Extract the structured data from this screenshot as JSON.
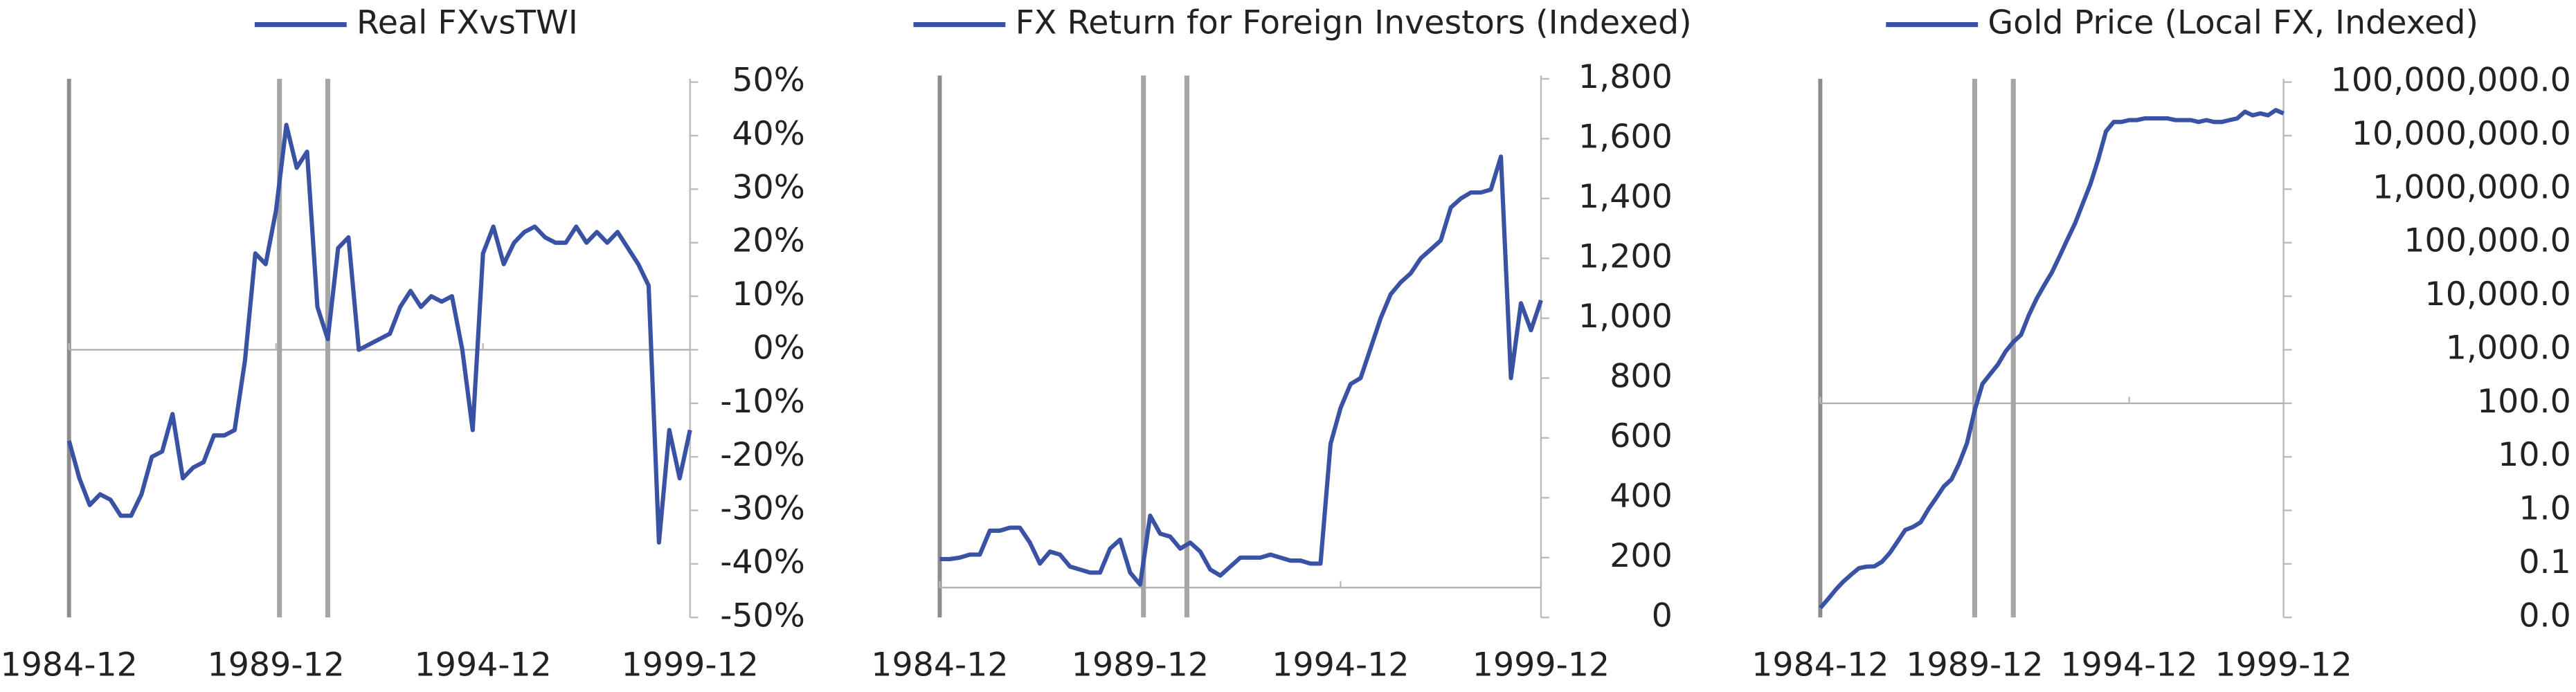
{
  "chart_data": [
    {
      "type": "line",
      "legend": "top",
      "hline": 0,
      "reference_lines": [
        "1990-01",
        "1991-03"
      ],
      "reference_color": "#a6a6a6",
      "x": [
        "1984-12",
        "1985-03",
        "1985-06",
        "1985-09",
        "1985-12",
        "1986-03",
        "1986-06",
        "1986-09",
        "1986-12",
        "1987-03",
        "1987-06",
        "1987-09",
        "1987-12",
        "1988-03",
        "1988-06",
        "1988-09",
        "1988-12",
        "1989-03",
        "1989-06",
        "1989-09",
        "1989-12",
        "1990-03",
        "1990-06",
        "1990-09",
        "1990-12",
        "1991-03",
        "1991-06",
        "1991-09",
        "1991-12",
        "1992-03",
        "1992-06",
        "1992-09",
        "1992-12",
        "1993-03",
        "1993-06",
        "1993-09",
        "1993-12",
        "1994-03",
        "1994-06",
        "1994-09",
        "1994-12",
        "1995-03",
        "1995-06",
        "1995-09",
        "1995-12",
        "1996-03",
        "1996-06",
        "1996-09",
        "1996-12",
        "1997-03",
        "1997-06",
        "1997-09",
        "1997-12",
        "1998-03",
        "1998-06",
        "1998-09",
        "1998-12",
        "1999-03",
        "1999-06",
        "1999-09",
        "1999-12"
      ],
      "series": [
        {
          "name": "Real FXvsTWI",
          "color": "#3a52a4",
          "values": [
            -17,
            -24,
            -29,
            -27,
            -28,
            -31,
            -31,
            -27,
            -20,
            -19,
            -12,
            -24,
            -22,
            -21,
            -16,
            -16,
            -15,
            -2,
            18,
            16,
            26,
            42,
            34,
            37,
            8,
            2,
            19,
            21,
            0,
            1,
            2,
            3,
            8,
            11,
            8,
            10,
            9,
            10,
            0,
            -15,
            18,
            23,
            16,
            20,
            22,
            23,
            21,
            20,
            20,
            23,
            20,
            22,
            20,
            22,
            19,
            16,
            12,
            -36,
            -15,
            -24,
            -15
          ]
        }
      ],
      "xlim": [
        "1984-12",
        "1999-12"
      ],
      "xticks": [
        "1984-12",
        "1989-12",
        "1994-12",
        "1999-12"
      ],
      "ylim": [
        -50,
        50
      ],
      "yticks": [
        {
          "value": 50,
          "label": "50%"
        },
        {
          "value": 40,
          "label": "40%"
        },
        {
          "value": 30,
          "label": "30%"
        },
        {
          "value": 20,
          "label": "20%"
        },
        {
          "value": 10,
          "label": "10%"
        },
        {
          "value": 0,
          "label": "0%"
        },
        {
          "value": -10,
          "label": "-10%"
        },
        {
          "value": -20,
          "label": "-20%"
        },
        {
          "value": -30,
          "label": "-30%"
        },
        {
          "value": -40,
          "label": "-40%"
        },
        {
          "value": -50,
          "label": "-50%"
        }
      ]
    },
    {
      "type": "line",
      "legend": "top",
      "hline": 100,
      "reference_lines": [
        "1990-01",
        "1991-02"
      ],
      "reference_color": "#a6a6a6",
      "x": [
        "1984-12",
        "1985-03",
        "1985-06",
        "1985-09",
        "1985-12",
        "1986-03",
        "1986-06",
        "1986-09",
        "1986-12",
        "1987-03",
        "1987-06",
        "1987-09",
        "1987-12",
        "1988-03",
        "1988-06",
        "1988-09",
        "1988-12",
        "1989-03",
        "1989-06",
        "1989-09",
        "1989-12",
        "1990-03",
        "1990-06",
        "1990-09",
        "1990-12",
        "1991-03",
        "1991-06",
        "1991-09",
        "1991-12",
        "1992-03",
        "1992-06",
        "1992-09",
        "1992-12",
        "1993-03",
        "1993-06",
        "1993-09",
        "1993-12",
        "1994-03",
        "1994-06",
        "1994-09",
        "1994-12",
        "1995-03",
        "1995-06",
        "1995-09",
        "1995-12",
        "1996-03",
        "1996-06",
        "1996-09",
        "1996-12",
        "1997-03",
        "1997-06",
        "1997-09",
        "1997-12",
        "1998-03",
        "1998-06",
        "1998-09",
        "1998-12",
        "1999-03",
        "1999-06",
        "1999-09",
        "1999-12"
      ],
      "series": [
        {
          "name": "FX Return for Foreign Investors (Indexed)",
          "color": "#3a52a4",
          "values": [
            195,
            195,
            200,
            210,
            210,
            290,
            290,
            300,
            300,
            250,
            180,
            220,
            210,
            170,
            160,
            150,
            150,
            230,
            260,
            150,
            110,
            340,
            280,
            270,
            230,
            250,
            220,
            160,
            140,
            170,
            200,
            200,
            200,
            210,
            200,
            190,
            190,
            180,
            180,
            580,
            700,
            780,
            800,
            900,
            1000,
            1080,
            1120,
            1150,
            1200,
            1230,
            1260,
            1370,
            1400,
            1420,
            1420,
            1430,
            1540,
            800,
            1050,
            960,
            1060
          ]
        }
      ],
      "xlim": [
        "1984-12",
        "1999-12"
      ],
      "xticks": [
        "1984-12",
        "1989-12",
        "1994-12",
        "1999-12"
      ],
      "ylim": [
        0,
        1800
      ],
      "yticks": [
        {
          "value": 1800,
          "label": "1,800"
        },
        {
          "value": 1600,
          "label": "1,600"
        },
        {
          "value": 1400,
          "label": "1,400"
        },
        {
          "value": 1200,
          "label": "1,200"
        },
        {
          "value": 1000,
          "label": "1,000"
        },
        800,
        600,
        400,
        200,
        0
      ]
    },
    {
      "type": "line",
      "legend": "top",
      "log_scale": true,
      "hline": 100,
      "reference_lines": [
        "1989-12",
        "1991-03"
      ],
      "reference_color": "#a6a6a6",
      "x": [
        "1984-12",
        "1985-03",
        "1985-06",
        "1985-09",
        "1985-12",
        "1986-03",
        "1986-06",
        "1986-09",
        "1986-12",
        "1987-03",
        "1987-06",
        "1987-09",
        "1987-12",
        "1988-03",
        "1988-06",
        "1988-09",
        "1988-12",
        "1989-03",
        "1989-06",
        "1989-09",
        "1989-12",
        "1990-03",
        "1990-06",
        "1990-09",
        "1990-12",
        "1991-03",
        "1991-06",
        "1991-09",
        "1991-12",
        "1992-03",
        "1992-06",
        "1992-09",
        "1992-12",
        "1993-03",
        "1993-06",
        "1993-09",
        "1993-12",
        "1994-03",
        "1994-06",
        "1994-09",
        "1994-12",
        "1995-03",
        "1995-06",
        "1995-09",
        "1995-12",
        "1996-03",
        "1996-06",
        "1996-09",
        "1996-12",
        "1997-03",
        "1997-06",
        "1997-09",
        "1997-12",
        "1998-03",
        "1998-06",
        "1998-09",
        "1998-12",
        "1999-03",
        "1999-06",
        "1999-09",
        "1999-12"
      ],
      "series": [
        {
          "name": "Gold Price (Local FX, Indexed)",
          "color": "#3a52a4",
          "values": [
            0.015,
            0.022,
            0.033,
            0.047,
            0.063,
            0.083,
            0.089,
            0.09,
            0.11,
            0.16,
            0.26,
            0.43,
            0.49,
            0.6,
            1.05,
            1.7,
            2.8,
            3.8,
            7.6,
            18,
            74,
            230,
            350,
            530,
            930,
            1400,
            1900,
            4400,
            8900,
            16000,
            28000,
            56000,
            115000,
            230000,
            540000,
            1260000,
            3600000,
            12000000,
            18000000,
            18000000,
            19500000,
            19500000,
            21000000,
            21000000,
            21000000,
            21000000,
            19500000,
            19500000,
            19500000,
            18000000,
            19500000,
            18000000,
            18000000,
            19500000,
            21000000,
            28000000,
            24000000,
            26000000,
            24000000,
            30000000,
            26000000
          ]
        }
      ],
      "xlim": [
        "1984-12",
        "1999-12"
      ],
      "xticks": [
        "1984-12",
        "1989-12",
        "1994-12",
        "1999-12"
      ],
      "ylim": [
        0.01,
        100000000
      ],
      "yticks": [
        {
          "value": 100000000,
          "label": "100,000,000.0"
        },
        {
          "value": 10000000,
          "label": "10,000,000.0"
        },
        {
          "value": 1000000,
          "label": "1,000,000.0"
        },
        {
          "value": 100000,
          "label": "100,000.0"
        },
        {
          "value": 10000,
          "label": "10,000.0"
        },
        {
          "value": 1000,
          "label": "1,000.0"
        },
        {
          "value": 100,
          "label": "100.0"
        },
        {
          "value": 10,
          "label": "10.0"
        },
        {
          "value": 1,
          "label": "1.0"
        },
        {
          "value": 0.1,
          "label": "0.1"
        },
        {
          "value": 0.01,
          "label": "0.0"
        }
      ]
    }
  ]
}
